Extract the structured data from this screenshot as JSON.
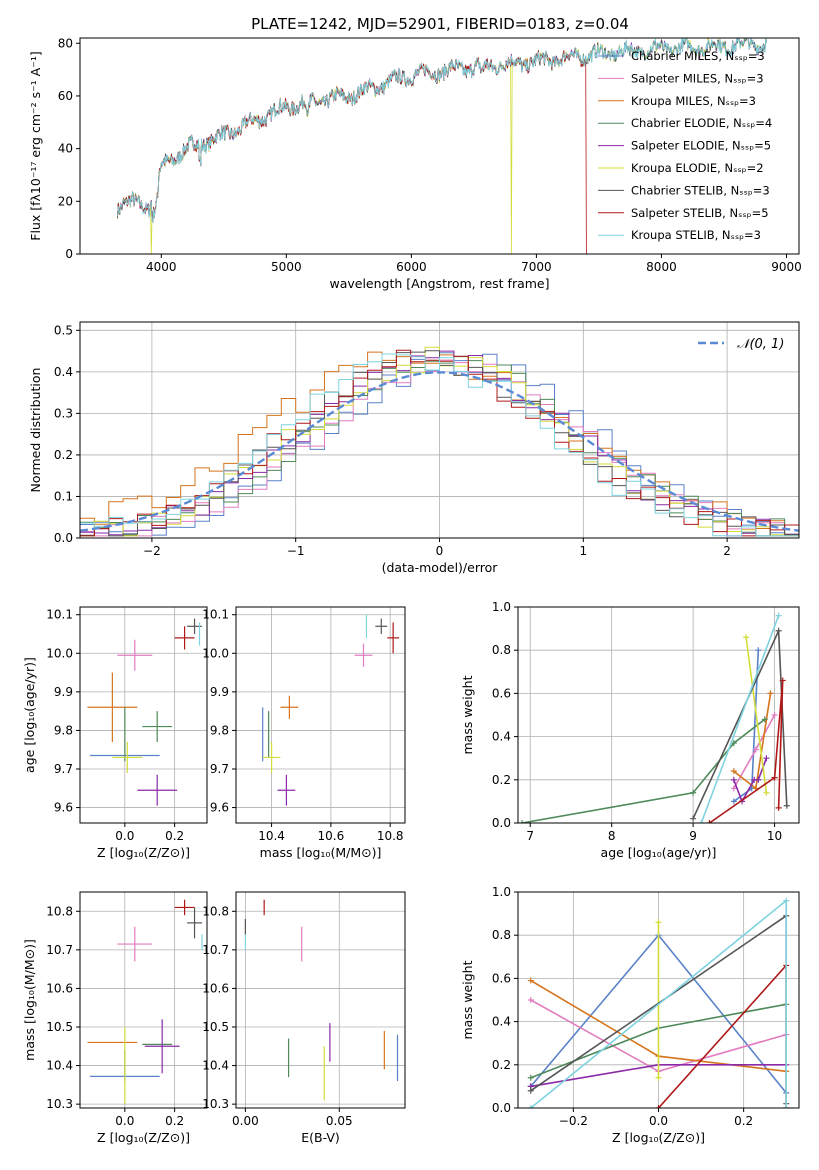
{
  "page_title": "PLATE=1242, MJD=52901, FIBERID=0183, z=0.04",
  "chart_data": [
    {
      "id": "spectrum",
      "type": "line",
      "title": "PLATE=1242, MJD=52901, FIBERID=0183, z=0.04",
      "xlabel": "wavelength [Angstrom, rest frame]",
      "ylabel": "Flux [fλ10⁻¹⁷ erg cm⁻² s⁻¹ A⁻¹]",
      "xlim": [
        3350,
        9100
      ],
      "ylim": [
        0,
        82
      ],
      "xticks": [
        4000,
        5000,
        6000,
        7000,
        8000,
        9000
      ],
      "yticks": [
        0,
        20,
        40,
        60,
        80
      ],
      "grid": false,
      "legend_position": "upper right",
      "series": [
        {
          "name": "Chabrier MILES, Nₛₛₚ=3",
          "color": "#5a82c8"
        },
        {
          "name": "Salpeter MILES, Nₛₛₚ=3",
          "color": "#e27cc0"
        },
        {
          "name": "Kroupa MILES, Nₛₛₚ=3",
          "color": "#d6741c"
        },
        {
          "name": "Chabrier ELODIE, Nₛₛₚ=4",
          "color": "#4f8a5a"
        },
        {
          "name": "Salpeter ELODIE, Nₛₛₚ=5",
          "color": "#8a2aa8"
        },
        {
          "name": "Kroupa ELODIE, Nₛₛₚ=2",
          "color": "#d4dc3a"
        },
        {
          "name": "Chabrier STELIB, Nₛₛₚ=3",
          "color": "#555555"
        },
        {
          "name": "Salpeter STELIB, Nₛₛₚ=5",
          "color": "#b01818"
        },
        {
          "name": "Kroupa STELIB, Nₛₛₚ=3",
          "color": "#7fd3e0"
        }
      ],
      "continuum": {
        "x": [
          3650,
          3700,
          3900,
          4000,
          4200,
          4500,
          5000,
          5500,
          6000,
          6500,
          7000,
          7500,
          8000,
          8500,
          8840
        ],
        "y": [
          18,
          20,
          18,
          33,
          40,
          45,
          56,
          60,
          68,
          71,
          73,
          76,
          78,
          79,
          80
        ]
      },
      "truncations": [
        {
          "series": "Kroupa ELODIE, Nₛₛₚ=2",
          "x_drop": 3920
        },
        {
          "series": "Kroupa ELODIE, Nₛₛₚ=2",
          "x_drop": 6800
        },
        {
          "series": "Salpeter STELIB, Nₛₛₚ=5",
          "x_drop": 7400
        }
      ]
    },
    {
      "id": "residuals",
      "type": "line",
      "xlabel": "(data-model)/error",
      "ylabel": "Normed distribution",
      "xlim": [
        -2.5,
        2.5
      ],
      "ylim": [
        0,
        0.52
      ],
      "xticks": [
        -2,
        -1,
        0,
        1,
        2
      ],
      "yticks": [
        0.0,
        0.1,
        0.2,
        0.3,
        0.4,
        0.5
      ],
      "grid": true,
      "legend_position": "upper right",
      "legend": "𝒩(0, 1)",
      "reference_curve": {
        "name": "𝒩(0, 1)",
        "mean": 0,
        "sigma": 1,
        "color": "#5a8ad6"
      },
      "histogram_bins": {
        "start": -2.5,
        "width": 0.1,
        "count": 50
      }
    },
    {
      "id": "age_vs_Z",
      "type": "scatter",
      "xlabel": "Z [log₁₀(Z/Z⊙)]",
      "ylabel": "age  [log₁₀(age/yr)]",
      "xlim": [
        -0.18,
        0.33
      ],
      "ylim": [
        9.56,
        10.12
      ],
      "xticks": [
        0.0,
        0.2
      ],
      "yticks": [
        9.6,
        9.7,
        9.8,
        9.9,
        10.0,
        10.1
      ],
      "grid": true,
      "points": [
        {
          "series": "Chabrier MILES",
          "x": 0.0,
          "y": 9.735,
          "xerr": 0.14,
          "yerr": 0.0
        },
        {
          "series": "Salpeter MILES",
          "x": 0.04,
          "y": 9.995,
          "xerr": 0.07,
          "yerr": 0.04
        },
        {
          "series": "Kroupa MILES",
          "x": -0.05,
          "y": 9.86,
          "xerr": 0.1,
          "yerr": 0.09
        },
        {
          "series": "Chabrier ELODIE",
          "x": 0.0,
          "y": 9.79,
          "xerr": 0.0,
          "yerr": 0.07
        },
        {
          "series": "Chabrier ELODIE",
          "x": 0.13,
          "y": 9.81,
          "xerr": 0.06,
          "yerr": 0.04
        },
        {
          "series": "Salpeter ELODIE",
          "x": 0.13,
          "y": 9.645,
          "xerr": 0.08,
          "yerr": 0.04
        },
        {
          "series": "Kroupa ELODIE",
          "x": 0.01,
          "y": 9.73,
          "xerr": 0.06,
          "yerr": 0.04
        },
        {
          "series": "Chabrier STELIB",
          "x": 0.28,
          "y": 10.07,
          "xerr": 0.03,
          "yerr": 0.02
        },
        {
          "series": "Salpeter STELIB",
          "x": 0.24,
          "y": 10.04,
          "xerr": 0.04,
          "yerr": 0.03
        },
        {
          "series": "Kroupa STELIB",
          "x": 0.3,
          "y": 10.05,
          "xerr": 0.0,
          "yerr": 0.03
        }
      ]
    },
    {
      "id": "age_vs_mass",
      "type": "scatter",
      "xlabel": "mass [log₁₀(M/M⊙)]",
      "xlim": [
        10.28,
        10.85
      ],
      "ylim": [
        9.56,
        10.12
      ],
      "xticks": [
        10.4,
        10.6,
        10.8
      ],
      "yticks": [
        9.6,
        9.7,
        9.8,
        9.9,
        10.0,
        10.1
      ],
      "grid": true,
      "points": [
        {
          "series": "Chabrier MILES",
          "x": 10.37,
          "y": 9.79,
          "xerr": 0.0,
          "yerr": 0.07
        },
        {
          "series": "Salpeter MILES",
          "x": 10.71,
          "y": 9.995,
          "xerr": 0.03,
          "yerr": 0.03
        },
        {
          "series": "Kroupa MILES",
          "x": 10.46,
          "y": 9.86,
          "xerr": 0.03,
          "yerr": 0.03
        },
        {
          "series": "Chabrier ELODIE",
          "x": 10.39,
          "y": 9.79,
          "xerr": 0.0,
          "yerr": 0.06
        },
        {
          "series": "Salpeter ELODIE",
          "x": 10.45,
          "y": 9.645,
          "xerr": 0.03,
          "yerr": 0.04
        },
        {
          "series": "Kroupa ELODIE",
          "x": 10.4,
          "y": 9.73,
          "xerr": 0.03,
          "yerr": 0.04
        },
        {
          "series": "Chabrier STELIB",
          "x": 10.77,
          "y": 10.07,
          "xerr": 0.02,
          "yerr": 0.02
        },
        {
          "series": "Salpeter STELIB",
          "x": 10.81,
          "y": 10.04,
          "xerr": 0.02,
          "yerr": 0.04
        },
        {
          "series": "Kroupa STELIB",
          "x": 10.72,
          "y": 10.07,
          "xerr": 0.0,
          "yerr": 0.03
        }
      ]
    },
    {
      "id": "mass_weight_vs_age",
      "type": "line",
      "xlabel": "age  [log₁₀(age/yr)]",
      "ylabel": "mass weight",
      "xlim": [
        6.85,
        10.3
      ],
      "ylim": [
        0,
        1
      ],
      "xticks": [
        7,
        8,
        9,
        10
      ],
      "yticks": [
        0.0,
        0.2,
        0.4,
        0.6,
        0.8,
        1.0
      ],
      "grid": true,
      "series": [
        {
          "name": "Chabrier MILES",
          "x": [
            9.5,
            9.72,
            9.8
          ],
          "y": [
            0.1,
            0.16,
            0.8
          ]
        },
        {
          "name": "Salpeter MILES",
          "x": [
            9.5,
            9.77,
            10.0
          ],
          "y": [
            0.16,
            0.34,
            0.5
          ]
        },
        {
          "name": "Kroupa MILES",
          "x": [
            9.5,
            9.77,
            9.95
          ],
          "y": [
            0.24,
            0.16,
            0.6
          ]
        },
        {
          "name": "Chabrier ELODIE",
          "x": [
            6.9,
            9.0,
            9.5,
            9.88
          ],
          "y": [
            0.0,
            0.14,
            0.37,
            0.48
          ]
        },
        {
          "name": "Salpeter ELODIE",
          "x": [
            9.5,
            9.6,
            9.75,
            9.8,
            9.9
          ],
          "y": [
            0.2,
            0.1,
            0.2,
            0.2,
            0.3
          ]
        },
        {
          "name": "Kroupa ELODIE",
          "x": [
            9.65,
            9.9
          ],
          "y": [
            0.86,
            0.14
          ]
        },
        {
          "name": "Chabrier STELIB",
          "x": [
            9.0,
            10.05,
            10.15
          ],
          "y": [
            0.02,
            0.89,
            0.08
          ]
        },
        {
          "name": "Salpeter STELIB",
          "x": [
            9.2,
            10.0,
            10.1,
            10.05
          ],
          "y": [
            0.0,
            0.21,
            0.66,
            0.07
          ]
        },
        {
          "name": "Kroupa STELIB",
          "x": [
            9.1,
            10.05
          ],
          "y": [
            0.0,
            0.96
          ]
        }
      ]
    },
    {
      "id": "mass_vs_Z",
      "type": "scatter",
      "xlabel": "Z [log₁₀(Z/Z⊙)]",
      "ylabel": "mass [log₁₀(M/M⊙)]",
      "xlim": [
        -0.18,
        0.33
      ],
      "ylim": [
        10.29,
        10.85
      ],
      "xticks": [
        0.0,
        0.2
      ],
      "yticks": [
        10.3,
        10.4,
        10.5,
        10.6,
        10.7,
        10.8
      ],
      "grid": true,
      "points": [
        {
          "series": "Chabrier MILES",
          "x": 0.0,
          "y": 10.372,
          "xerr": 0.14,
          "yerr": 0.0
        },
        {
          "series": "Salpeter MILES",
          "x": 0.04,
          "y": 10.715,
          "xerr": 0.07,
          "yerr": 0.045
        },
        {
          "series": "Kroupa MILES",
          "x": -0.05,
          "y": 10.46,
          "xerr": 0.1,
          "yerr": 0.0
        },
        {
          "series": "Chabrier ELODIE",
          "x": 0.0,
          "y": 10.4,
          "xerr": 0.0,
          "yerr": 0.04
        },
        {
          "series": "Chabrier ELODIE",
          "x": 0.13,
          "y": 10.455,
          "xerr": 0.06,
          "yerr": 0.0
        },
        {
          "series": "Salpeter ELODIE",
          "x": 0.15,
          "y": 10.45,
          "xerr": 0.07,
          "yerr": 0.07
        },
        {
          "series": "Kroupa ELODIE",
          "x": 0.0,
          "y": 10.4,
          "xerr": 0.0,
          "yerr": 0.1
        },
        {
          "series": "Chabrier STELIB",
          "x": 0.28,
          "y": 10.77,
          "xerr": 0.03,
          "yerr": 0.04
        },
        {
          "series": "Salpeter STELIB",
          "x": 0.24,
          "y": 10.81,
          "xerr": 0.04,
          "yerr": 0.02
        },
        {
          "series": "Kroupa STELIB",
          "x": 0.31,
          "y": 10.72,
          "xerr": 0.0,
          "yerr": 0.02
        }
      ]
    },
    {
      "id": "mass_vs_ebv",
      "type": "scatter",
      "xlabel": "E(B-V)",
      "xlim": [
        -0.005,
        0.085
      ],
      "ylim": [
        10.29,
        10.85
      ],
      "xticks": [
        0.0,
        0.05
      ],
      "yticks": [
        10.3,
        10.4,
        10.5,
        10.6,
        10.7,
        10.8
      ],
      "grid": true,
      "points": [
        {
          "series": "Chabrier MILES",
          "x": 0.081,
          "y": 10.42,
          "yerr": 0.06
        },
        {
          "series": "Salpeter MILES",
          "x": 0.03,
          "y": 10.715,
          "yerr": 0.045
        },
        {
          "series": "Kroupa MILES",
          "x": 0.074,
          "y": 10.44,
          "yerr": 0.05
        },
        {
          "series": "Chabrier ELODIE",
          "x": 0.023,
          "y": 10.42,
          "yerr": 0.05
        },
        {
          "series": "Salpeter ELODIE",
          "x": 0.045,
          "y": 10.46,
          "yerr": 0.05
        },
        {
          "series": "Kroupa ELODIE",
          "x": 0.042,
          "y": 10.38,
          "yerr": 0.07
        },
        {
          "series": "Chabrier STELIB",
          "x": 0.0,
          "y": 10.76,
          "yerr": 0.02
        },
        {
          "series": "Salpeter STELIB",
          "x": 0.01,
          "y": 10.81,
          "yerr": 0.02
        },
        {
          "series": "Kroupa STELIB",
          "x": 0.0,
          "y": 10.72,
          "yerr": 0.02
        }
      ]
    },
    {
      "id": "mass_weight_vs_Z",
      "type": "line",
      "xlabel": "Z [log₁₀(Z/Z⊙)]",
      "ylabel": "mass weight",
      "xlim": [
        -0.33,
        0.33
      ],
      "ylim": [
        0,
        1
      ],
      "xticks": [
        -0.2,
        0.0,
        0.2
      ],
      "yticks": [
        0.0,
        0.2,
        0.4,
        0.6,
        0.8,
        1.0
      ],
      "grid": true,
      "series": [
        {
          "name": "Chabrier MILES",
          "x": [
            -0.3,
            0.0,
            0.3
          ],
          "y": [
            0.1,
            0.8,
            0.07
          ]
        },
        {
          "name": "Salpeter MILES",
          "x": [
            -0.3,
            0.0,
            0.3
          ],
          "y": [
            0.5,
            0.17,
            0.34
          ]
        },
        {
          "name": "Kroupa MILES",
          "x": [
            -0.3,
            0.0,
            0.3
          ],
          "y": [
            0.59,
            0.24,
            0.17
          ]
        },
        {
          "name": "Chabrier ELODIE",
          "x": [
            -0.3,
            0.0,
            0.3
          ],
          "y": [
            0.14,
            0.37,
            0.48
          ]
        },
        {
          "name": "Salpeter ELODIE",
          "x": [
            -0.3,
            0.0,
            0.3
          ],
          "y": [
            0.1,
            0.2,
            0.2
          ]
        },
        {
          "name": "Kroupa ELODIE",
          "x": [
            0.0,
            0.0
          ],
          "y": [
            0.86,
            0.14
          ]
        },
        {
          "name": "Chabrier STELIB",
          "x": [
            -0.3,
            0.3,
            0.3
          ],
          "y": [
            0.08,
            0.89,
            0.02
          ]
        },
        {
          "name": "Salpeter STELIB",
          "x": [
            0.0,
            0.3,
            0.3
          ],
          "y": [
            0.0,
            0.66,
            0.0
          ]
        },
        {
          "name": "Kroupa STELIB",
          "x": [
            -0.3,
            0.3,
            0.3
          ],
          "y": [
            0.0,
            0.96,
            0.0
          ]
        }
      ]
    }
  ]
}
